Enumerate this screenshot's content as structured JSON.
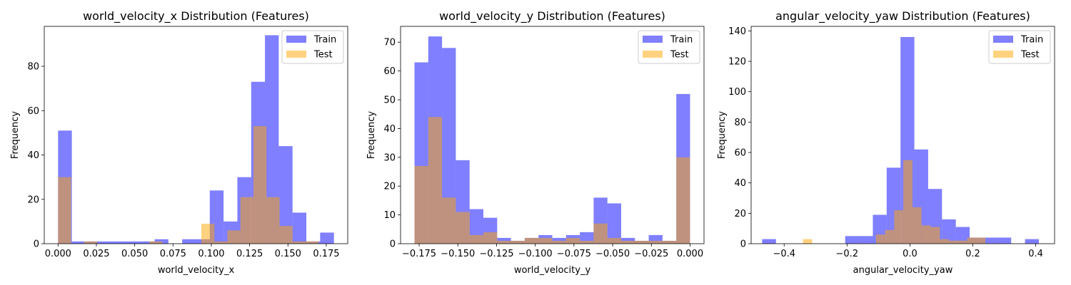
{
  "chart_data": [
    {
      "type": "histogram",
      "title": "world_velocity_x Distribution (Features)",
      "xlabel": "world_velocity_x",
      "ylabel": "Frequency",
      "xlim": [
        -0.009,
        0.189
      ],
      "ylim": [
        0,
        98
      ],
      "xticks": [
        0.0,
        0.025,
        0.05,
        0.075,
        0.1,
        0.125,
        0.15,
        0.175
      ],
      "xtick_labels": [
        "0.000",
        "0.025",
        "0.050",
        "0.075",
        "0.100",
        "0.125",
        "0.150",
        "0.175"
      ],
      "yticks": [
        0,
        20,
        40,
        60,
        80
      ],
      "ytick_labels": [
        "0",
        "20",
        "40",
        "60",
        "80"
      ],
      "legend": "top-right",
      "series": [
        {
          "name": "Train",
          "color": "#0000ff",
          "alpha": 0.5,
          "bins": [
            0.0,
            0.009,
            0.018,
            0.027,
            0.036,
            0.045,
            0.054,
            0.063,
            0.072,
            0.081,
            0.09,
            0.099,
            0.108,
            0.117,
            0.126,
            0.135,
            0.144,
            0.153,
            0.162,
            0.171,
            0.18
          ],
          "counts": [
            51,
            1,
            1,
            1,
            1,
            1,
            1,
            2,
            0,
            2,
            2,
            24,
            10,
            30,
            73,
            94,
            44,
            14,
            1,
            5
          ]
        },
        {
          "name": "Test",
          "color": "#ffa500",
          "alpha": 0.5,
          "bins": [
            0.0,
            0.0085,
            0.017,
            0.0255,
            0.034,
            0.0425,
            0.051,
            0.0595,
            0.068,
            0.0765,
            0.085,
            0.0935,
            0.102,
            0.1105,
            0.119,
            0.1275,
            0.136,
            0.1445,
            0.153,
            0.1615,
            0.17
          ],
          "counts": [
            30,
            0,
            1,
            0,
            0,
            0,
            0,
            1,
            0,
            0,
            0,
            9,
            1,
            6,
            21,
            53,
            21,
            8,
            1,
            1
          ]
        }
      ]
    },
    {
      "type": "histogram",
      "title": "world_velocity_y Distribution (Features)",
      "xlabel": "world_velocity_y",
      "ylabel": "Frequency",
      "xlim": [
        -0.187,
        0.009
      ],
      "ylim": [
        0,
        75.5
      ],
      "xticks": [
        -0.175,
        -0.15,
        -0.125,
        -0.1,
        -0.075,
        -0.05,
        -0.025,
        0.0
      ],
      "xtick_labels": [
        "−0.175",
        "−0.150",
        "−0.125",
        "−0.100",
        "−0.075",
        "−0.050",
        "−0.025",
        "0.000"
      ],
      "yticks": [
        0,
        10,
        20,
        30,
        40,
        50,
        60,
        70
      ],
      "ytick_labels": [
        "0",
        "10",
        "20",
        "30",
        "40",
        "50",
        "60",
        "70"
      ],
      "legend": "top-right",
      "series": [
        {
          "name": "Train",
          "color": "#0000ff",
          "alpha": 0.5,
          "bins": [
            -0.178,
            -0.1691,
            -0.1602,
            -0.1513,
            -0.1424,
            -0.1335,
            -0.1246,
            -0.1157,
            -0.1068,
            -0.0979,
            -0.089,
            -0.0801,
            -0.0712,
            -0.0623,
            -0.0534,
            -0.0445,
            -0.0356,
            -0.0267,
            -0.0178,
            -0.0089,
            0.0
          ],
          "counts": [
            63,
            72,
            68,
            29,
            12,
            9,
            2,
            1,
            2,
            3,
            2,
            3,
            4,
            16,
            14,
            2,
            1,
            3,
            1,
            52
          ]
        },
        {
          "name": "Test",
          "color": "#ffa500",
          "alpha": 0.5,
          "bins": [
            -0.178,
            -0.1691,
            -0.1602,
            -0.1513,
            -0.1424,
            -0.1335,
            -0.1246,
            -0.1157,
            -0.1068,
            -0.0979,
            -0.089,
            -0.0801,
            -0.0712,
            -0.0623,
            -0.0534,
            -0.0445,
            -0.0356,
            -0.0267,
            -0.0178,
            -0.0089,
            0.0
          ],
          "counts": [
            27,
            44,
            16,
            11,
            3,
            4,
            1,
            1,
            2,
            2,
            1,
            2,
            1,
            7,
            2,
            1,
            1,
            1,
            1,
            30
          ]
        }
      ]
    },
    {
      "type": "histogram",
      "title": "angular_velocity_yaw Distribution (Features)",
      "xlabel": "angular_velocity_yaw",
      "ylabel": "Frequency",
      "xlim": [
        -0.505,
        0.46
      ],
      "ylim": [
        0,
        143
      ],
      "xticks": [
        -0.4,
        -0.2,
        0.0,
        0.2,
        0.4
      ],
      "xtick_labels": [
        "−0.4",
        "−0.2",
        "0.0",
        "0.2",
        "0.4"
      ],
      "yticks": [
        0,
        20,
        40,
        60,
        80,
        100,
        120,
        140
      ],
      "ytick_labels": [
        "0",
        "20",
        "40",
        "60",
        "80",
        "100",
        "120",
        "140"
      ],
      "legend": "top-right",
      "series": [
        {
          "name": "Train",
          "color": "#0000ff",
          "alpha": 0.5,
          "bins": [
            -0.47,
            -0.426,
            -0.382,
            -0.338,
            -0.294,
            -0.25,
            -0.206,
            -0.162,
            -0.118,
            -0.074,
            -0.03,
            0.014,
            0.058,
            0.102,
            0.146,
            0.19,
            0.234,
            0.278,
            0.322,
            0.366,
            0.41
          ],
          "counts": [
            3,
            0,
            0,
            0,
            0,
            0,
            5,
            5,
            19,
            50,
            136,
            62,
            36,
            16,
            11,
            4,
            4,
            4,
            0,
            3
          ]
        },
        {
          "name": "Test",
          "color": "#ffa500",
          "alpha": 0.5,
          "bins": [
            -0.34,
            -0.311,
            -0.282,
            -0.253,
            -0.224,
            -0.195,
            -0.166,
            -0.137,
            -0.108,
            -0.079,
            -0.05,
            -0.021,
            0.008,
            0.037,
            0.066,
            0.095,
            0.124,
            0.153,
            0.182,
            0.211,
            0.24
          ],
          "counts": [
            3,
            0,
            0,
            0,
            0,
            0,
            0,
            0,
            6,
            9,
            22,
            55,
            24,
            12,
            11,
            3,
            2,
            2,
            4,
            4
          ]
        }
      ]
    }
  ]
}
